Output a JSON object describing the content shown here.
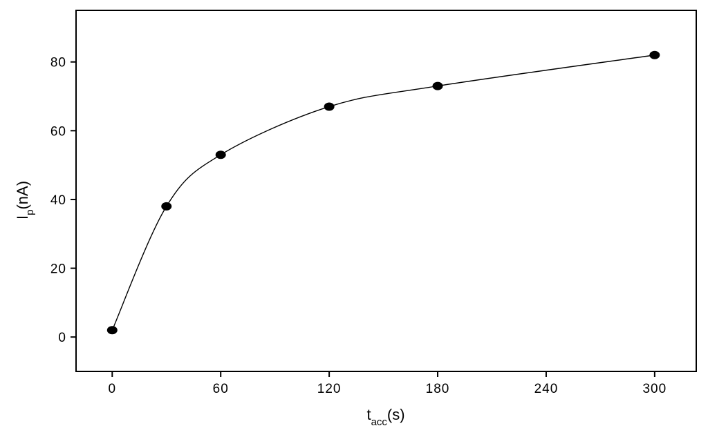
{
  "chart_data": {
    "type": "scatter",
    "title": "",
    "xlabel": {
      "main": "t",
      "sub": "acc",
      "unit": "(s)"
    },
    "ylabel": {
      "main": "I",
      "sub": "p",
      "unit": "(nA)"
    },
    "xlim": [
      -20,
      323
    ],
    "ylim": [
      -10,
      95
    ],
    "xticks": [
      0,
      60,
      120,
      180,
      240,
      300
    ],
    "yticks": [
      0,
      20,
      40,
      60,
      80
    ],
    "grid": false,
    "legend": "none",
    "series": [
      {
        "x": [
          0,
          30,
          60,
          120,
          180,
          300
        ],
        "y": [
          2,
          38,
          53,
          67,
          73,
          82
        ],
        "marker": "filled-ellipse",
        "fit_line": "smooth"
      }
    ],
    "colors": {
      "line": "#000000",
      "marker": "#000000",
      "axis": "#000000"
    }
  }
}
